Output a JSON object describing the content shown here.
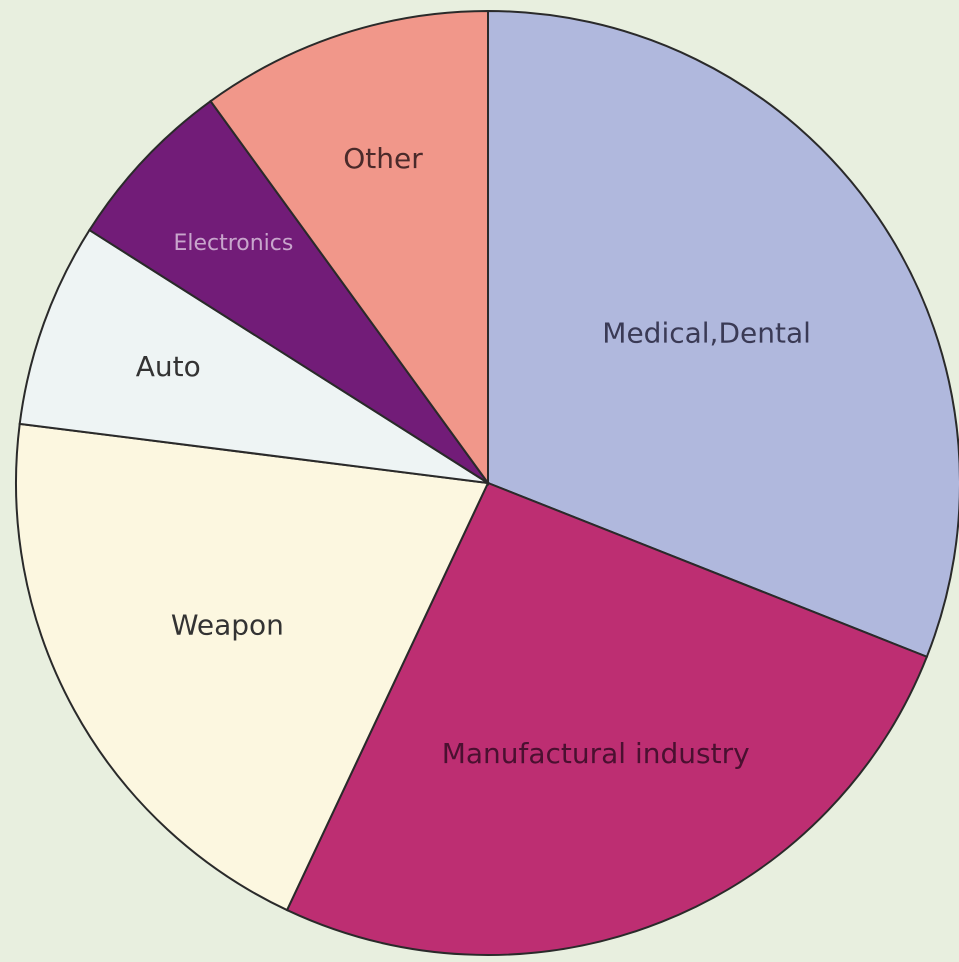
{
  "colors": {
    "page_background": "#e8efdf"
  },
  "chart_data": {
    "type": "pie",
    "title": "",
    "start_angle_deg": 0,
    "direction": "clockwise",
    "slices": [
      {
        "label": "Medical,Dental",
        "value": 31,
        "color": "#b0b8dd",
        "label_color": "#3a3a55"
      },
      {
        "label": "Manufactural industry",
        "value": 26,
        "color": "#bd2e72",
        "label_color": "#4a1030"
      },
      {
        "label": "Weapon",
        "value": 20,
        "color": "#fcf7e0",
        "label_color": "#333333"
      },
      {
        "label": "Auto",
        "value": 7,
        "color": "#eef4f4",
        "label_color": "#333333"
      },
      {
        "label": "Electronics",
        "value": 6,
        "color": "#721c78",
        "label_color": "#c8a6cc"
      },
      {
        "label": "Other",
        "value": 10,
        "color": "#f1978a",
        "label_color": "#4a2a2a"
      }
    ]
  }
}
